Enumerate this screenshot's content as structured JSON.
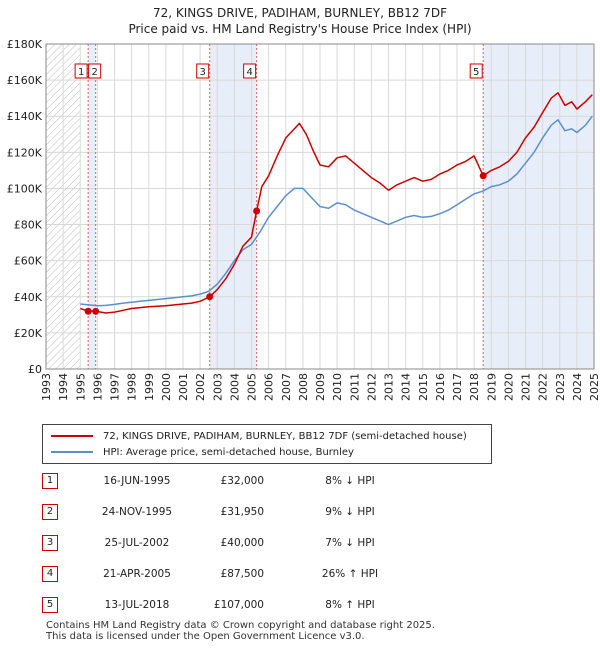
{
  "chart_data": {
    "type": "line",
    "title": "72, KINGS DRIVE, PADIHAM, BURNLEY, BB12 7DF",
    "subtitle": "Price paid vs. HM Land Registry's House Price Index (HPI)",
    "xlabel": "",
    "ylabel": "",
    "xlim": [
      1993,
      2025
    ],
    "ylim": [
      0,
      180000
    ],
    "x_ticks": [
      "1993",
      "1994",
      "1995",
      "1996",
      "1997",
      "1998",
      "1999",
      "2000",
      "2001",
      "2002",
      "2003",
      "2004",
      "2005",
      "2006",
      "2007",
      "2008",
      "2009",
      "2010",
      "2011",
      "2012",
      "2013",
      "2014",
      "2015",
      "2016",
      "2017",
      "2018",
      "2019",
      "2020",
      "2021",
      "2022",
      "2023",
      "2024",
      "2025"
    ],
    "y_ticks": [
      {
        "value": 0,
        "label": "£0"
      },
      {
        "value": 20000,
        "label": "£20K"
      },
      {
        "value": 40000,
        "label": "£40K"
      },
      {
        "value": 60000,
        "label": "£60K"
      },
      {
        "value": 80000,
        "label": "£80K"
      },
      {
        "value": 100000,
        "label": "£100K"
      },
      {
        "value": 120000,
        "label": "£120K"
      },
      {
        "value": 140000,
        "label": "£140K"
      },
      {
        "value": 160000,
        "label": "£160K"
      },
      {
        "value": 180000,
        "label": "£180K"
      }
    ],
    "grid": true,
    "hatched_regions": [
      [
        1993,
        1995
      ],
      [
        2025,
        2025.5
      ]
    ],
    "shaded_bands": [
      [
        1995.46,
        1995.9
      ],
      [
        2002.56,
        2005.3
      ],
      [
        2018.53,
        2025
      ]
    ],
    "series": [
      {
        "name": "72, KINGS DRIVE, PADIHAM, BURNLEY, BB12 7DF (semi-detached house)",
        "color": "#cc0000",
        "points": [
          [
            1995.0,
            33500
          ],
          [
            1995.46,
            32000
          ],
          [
            1995.9,
            31950
          ],
          [
            1996.5,
            31000
          ],
          [
            1997.0,
            31500
          ],
          [
            1997.5,
            32500
          ],
          [
            1998.0,
            33500
          ],
          [
            1998.5,
            34000
          ],
          [
            1999.0,
            34500
          ],
          [
            1999.5,
            34800
          ],
          [
            2000.0,
            35000
          ],
          [
            2000.5,
            35500
          ],
          [
            2001.0,
            36000
          ],
          [
            2001.5,
            36500
          ],
          [
            2002.0,
            37500
          ],
          [
            2002.56,
            40000
          ],
          [
            2003.0,
            44000
          ],
          [
            2003.5,
            50000
          ],
          [
            2004.0,
            58000
          ],
          [
            2004.5,
            68000
          ],
          [
            2005.0,
            73000
          ],
          [
            2005.3,
            87500
          ],
          [
            2005.6,
            101000
          ],
          [
            2006.0,
            107000
          ],
          [
            2006.5,
            118000
          ],
          [
            2007.0,
            128000
          ],
          [
            2007.5,
            133000
          ],
          [
            2007.8,
            136000
          ],
          [
            2008.2,
            130000
          ],
          [
            2008.6,
            121000
          ],
          [
            2009.0,
            113000
          ],
          [
            2009.5,
            112000
          ],
          [
            2010.0,
            117000
          ],
          [
            2010.5,
            118000
          ],
          [
            2011.0,
            114000
          ],
          [
            2011.5,
            110000
          ],
          [
            2012.0,
            106000
          ],
          [
            2012.5,
            103000
          ],
          [
            2013.0,
            99000
          ],
          [
            2013.5,
            102000
          ],
          [
            2014.0,
            104000
          ],
          [
            2014.5,
            106000
          ],
          [
            2015.0,
            104000
          ],
          [
            2015.5,
            105000
          ],
          [
            2016.0,
            108000
          ],
          [
            2016.5,
            110000
          ],
          [
            2017.0,
            113000
          ],
          [
            2017.5,
            115000
          ],
          [
            2018.0,
            118000
          ],
          [
            2018.53,
            107000
          ],
          [
            2019.0,
            110000
          ],
          [
            2019.5,
            112000
          ],
          [
            2020.0,
            115000
          ],
          [
            2020.5,
            120000
          ],
          [
            2021.0,
            128000
          ],
          [
            2021.5,
            134000
          ],
          [
            2022.0,
            142000
          ],
          [
            2022.5,
            150000
          ],
          [
            2022.9,
            153000
          ],
          [
            2023.3,
            146000
          ],
          [
            2023.7,
            148000
          ],
          [
            2024.0,
            144000
          ],
          [
            2024.5,
            148000
          ],
          [
            2024.9,
            152000
          ]
        ]
      },
      {
        "name": "HPI: Average price, semi-detached house, Burnley",
        "color": "#5b8fcc",
        "points": [
          [
            1995.0,
            36000
          ],
          [
            1995.5,
            35500
          ],
          [
            1996.0,
            35000
          ],
          [
            1996.5,
            35200
          ],
          [
            1997.0,
            35800
          ],
          [
            1997.5,
            36500
          ],
          [
            1998.0,
            37000
          ],
          [
            1998.5,
            37500
          ],
          [
            1999.0,
            38000
          ],
          [
            1999.5,
            38500
          ],
          [
            2000.0,
            39000
          ],
          [
            2000.5,
            39500
          ],
          [
            2001.0,
            40000
          ],
          [
            2001.5,
            40500
          ],
          [
            2002.0,
            41500
          ],
          [
            2002.5,
            43000
          ],
          [
            2003.0,
            47000
          ],
          [
            2003.5,
            53000
          ],
          [
            2004.0,
            60000
          ],
          [
            2004.5,
            66000
          ],
          [
            2005.0,
            69000
          ],
          [
            2005.5,
            76000
          ],
          [
            2006.0,
            84000
          ],
          [
            2006.5,
            90000
          ],
          [
            2007.0,
            96000
          ],
          [
            2007.5,
            100000
          ],
          [
            2008.0,
            100000
          ],
          [
            2008.5,
            95000
          ],
          [
            2009.0,
            90000
          ],
          [
            2009.5,
            89000
          ],
          [
            2010.0,
            92000
          ],
          [
            2010.5,
            91000
          ],
          [
            2011.0,
            88000
          ],
          [
            2011.5,
            86000
          ],
          [
            2012.0,
            84000
          ],
          [
            2012.5,
            82000
          ],
          [
            2013.0,
            80000
          ],
          [
            2013.5,
            82000
          ],
          [
            2014.0,
            84000
          ],
          [
            2014.5,
            85000
          ],
          [
            2015.0,
            84000
          ],
          [
            2015.5,
            84500
          ],
          [
            2016.0,
            86000
          ],
          [
            2016.5,
            88000
          ],
          [
            2017.0,
            91000
          ],
          [
            2017.5,
            94000
          ],
          [
            2018.0,
            97000
          ],
          [
            2018.5,
            98500
          ],
          [
            2019.0,
            101000
          ],
          [
            2019.5,
            102000
          ],
          [
            2020.0,
            104000
          ],
          [
            2020.5,
            108000
          ],
          [
            2021.0,
            114000
          ],
          [
            2021.5,
            120000
          ],
          [
            2022.0,
            128000
          ],
          [
            2022.5,
            135000
          ],
          [
            2022.9,
            138000
          ],
          [
            2023.3,
            132000
          ],
          [
            2023.7,
            133000
          ],
          [
            2024.0,
            131000
          ],
          [
            2024.5,
            135000
          ],
          [
            2024.9,
            140000
          ]
        ]
      }
    ],
    "sales": [
      {
        "num": "1",
        "x": 1995.46,
        "y": 32000
      },
      {
        "num": "2",
        "x": 1995.9,
        "y": 31950
      },
      {
        "num": "3",
        "x": 2002.56,
        "y": 40000
      },
      {
        "num": "4",
        "x": 2005.3,
        "y": 87500
      },
      {
        "num": "5",
        "x": 2018.53,
        "y": 107000
      }
    ]
  },
  "legend": {
    "property_label": "72, KINGS DRIVE, PADIHAM, BURNLEY, BB12 7DF (semi-detached house)",
    "hpi_label": "HPI: Average price, semi-detached house, Burnley",
    "property_color": "#cc0000",
    "hpi_color": "#5b8fcc"
  },
  "transactions": [
    {
      "num": "1",
      "date": "16-JUN-1995",
      "price": "£32,000",
      "hpi": "8% ↓ HPI"
    },
    {
      "num": "2",
      "date": "24-NOV-1995",
      "price": "£31,950",
      "hpi": "9% ↓ HPI"
    },
    {
      "num": "3",
      "date": "25-JUL-2002",
      "price": "£40,000",
      "hpi": "7% ↓ HPI"
    },
    {
      "num": "4",
      "date": "21-APR-2005",
      "price": "£87,500",
      "hpi": "26% ↑ HPI"
    },
    {
      "num": "5",
      "date": "13-JUL-2018",
      "price": "£107,000",
      "hpi": "8% ↑ HPI"
    }
  ],
  "footer": {
    "line1": "Contains HM Land Registry data © Crown copyright and database right 2025.",
    "line2": "This data is licensed under the Open Government Licence v3.0."
  }
}
